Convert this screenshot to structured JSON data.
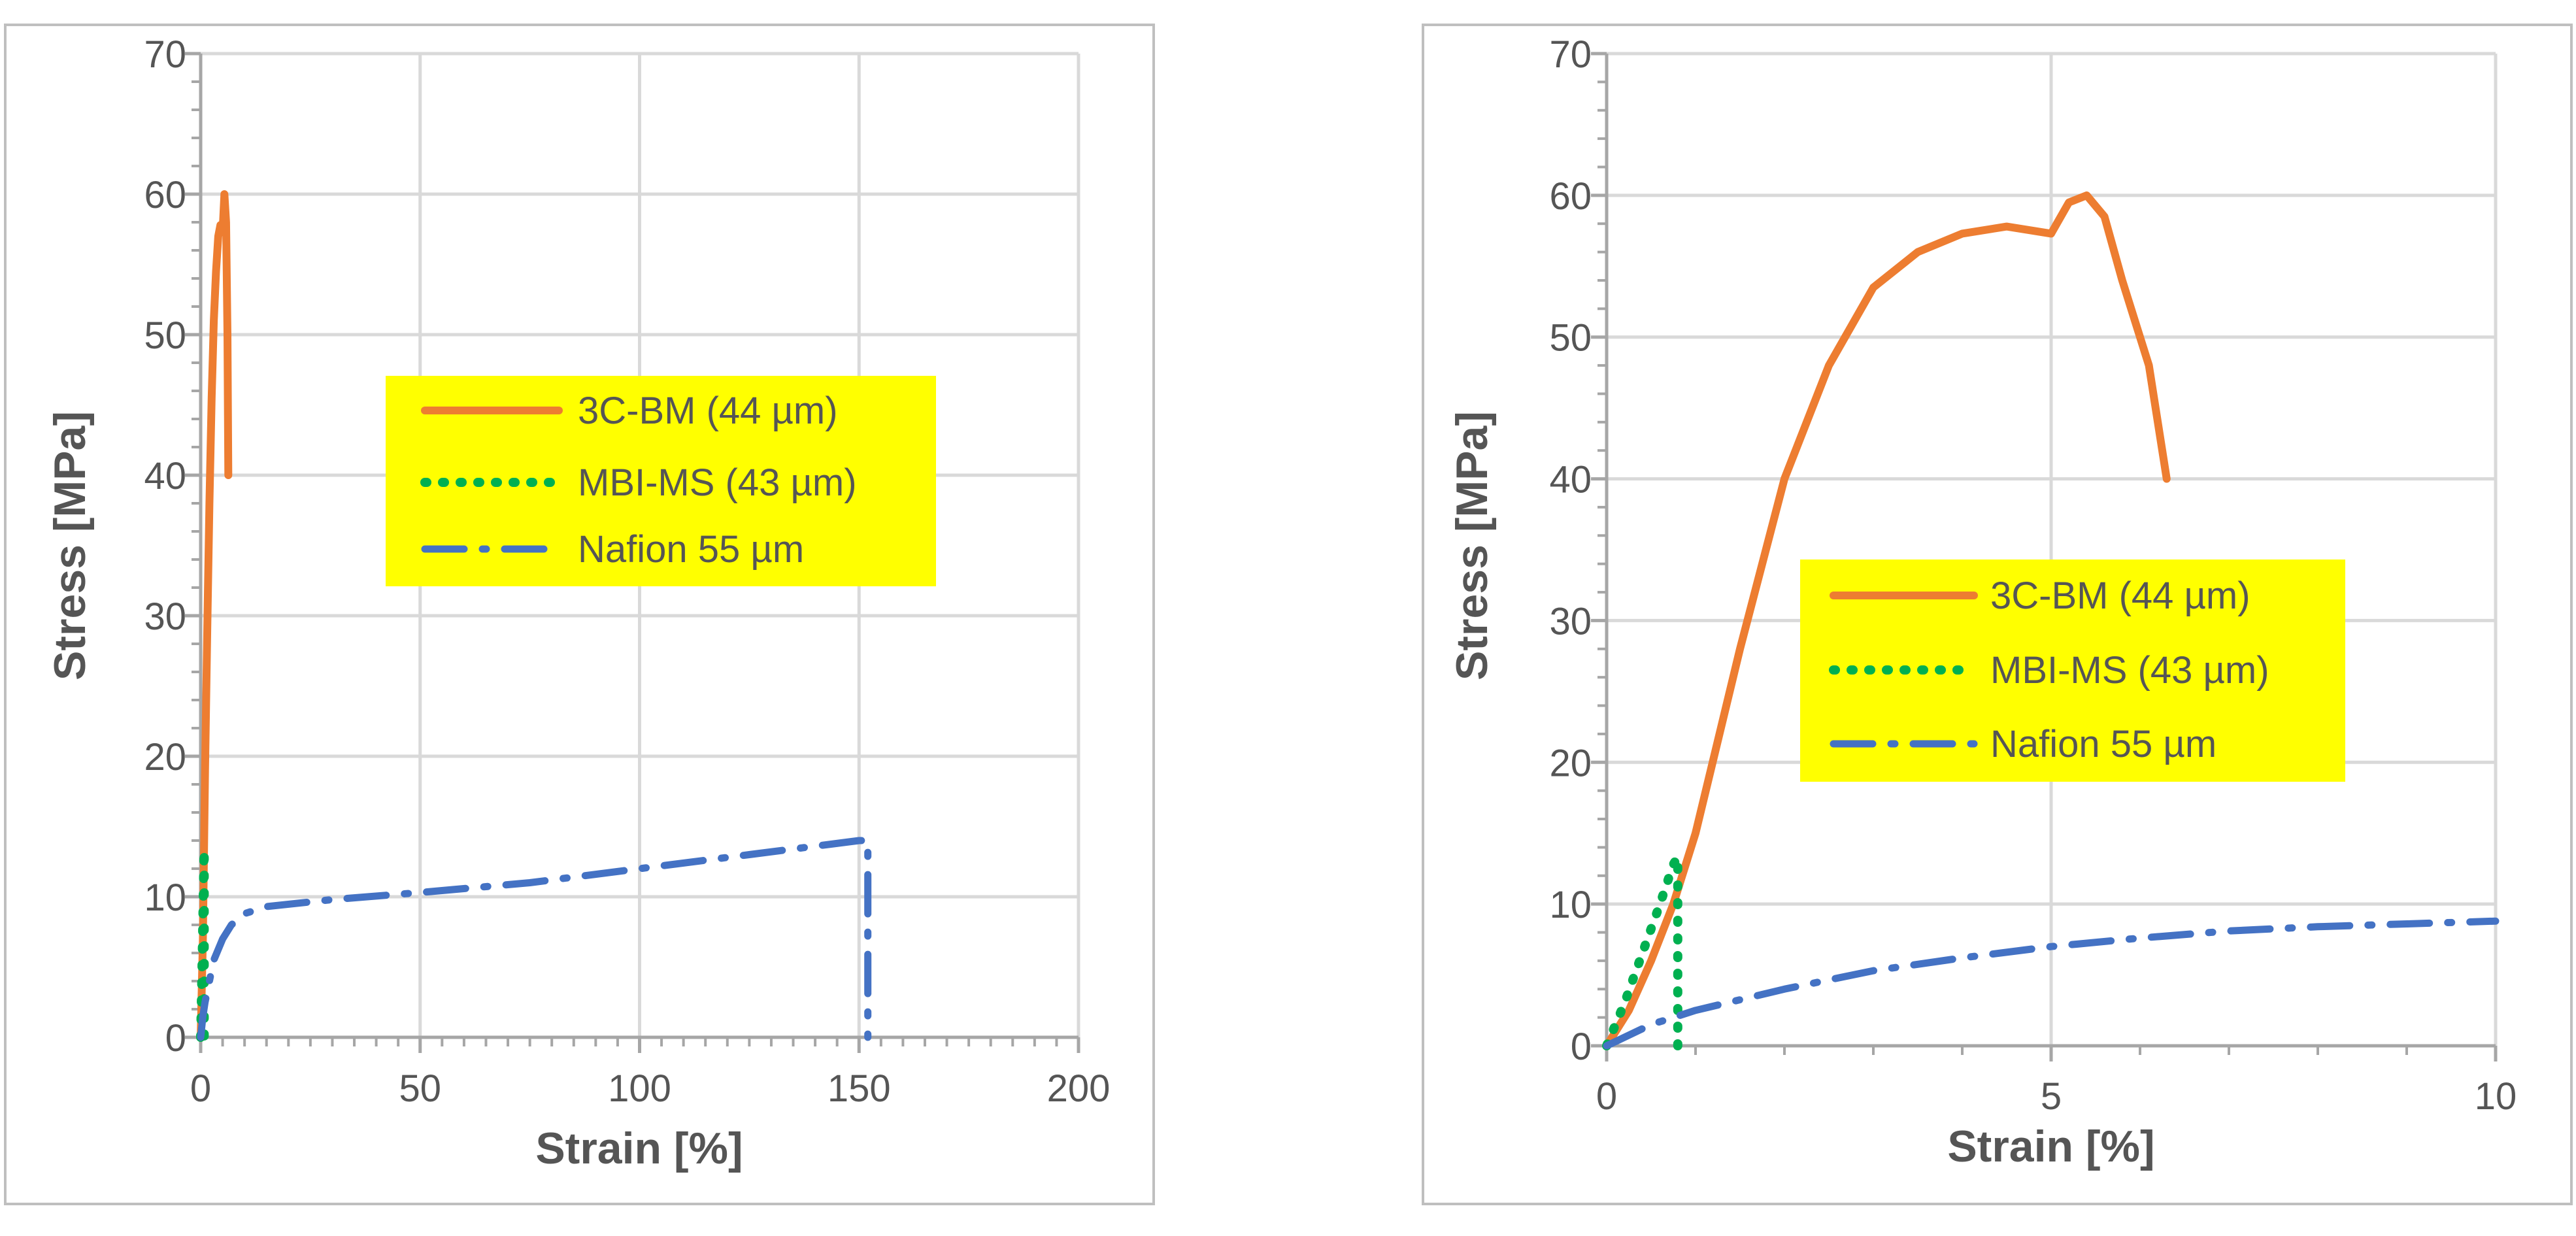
{
  "chart_data": [
    {
      "type": "line",
      "title": "",
      "xlabel": "Strain [%]",
      "ylabel": "Stress [MPa]",
      "xlim": [
        0,
        200
      ],
      "ylim": [
        0,
        70
      ],
      "x_ticks": [
        0,
        50,
        100,
        150,
        200
      ],
      "y_ticks": [
        0,
        10,
        20,
        30,
        40,
        50,
        60,
        70
      ],
      "x_tick_labels": [
        "0",
        "50",
        "100",
        "150",
        "200"
      ],
      "y_tick_labels": [
        "0",
        "10",
        "20",
        "30",
        "40",
        "50",
        "60",
        "70"
      ],
      "grid": true,
      "legend_position": "center-right",
      "series": [
        {
          "name": "3C-BM (44 µm)",
          "color": "#ED7D31",
          "style": "solid",
          "x": [
            0,
            0.5,
            1,
            1.5,
            2,
            2.5,
            3,
            3.5,
            4,
            4.5,
            5,
            5.4,
            5.8,
            6.1,
            6.3
          ],
          "y": [
            0,
            7,
            19,
            29,
            38,
            45.5,
            51,
            54.5,
            57,
            57.8,
            57.4,
            60,
            58,
            50,
            40
          ]
        },
        {
          "name": "MBI-MS (43 µm)",
          "color": "#00B050",
          "style": "dotted",
          "x": [
            0,
            0.2,
            0.4,
            0.6,
            0.75,
            0.8,
            0.8
          ],
          "y": [
            0,
            3,
            6.5,
            10,
            12.8,
            13.3,
            0
          ]
        },
        {
          "name": "Nafion 55 µm",
          "color": "#4472C4",
          "style": "dash-dot",
          "x": [
            0,
            0.5,
            1,
            2,
            3,
            5,
            7,
            10,
            15,
            30,
            50,
            75,
            100,
            125,
            150,
            152,
            152
          ],
          "y": [
            0,
            1.5,
            2.5,
            4,
            5.5,
            7,
            8,
            8.8,
            9.3,
            9.8,
            10.3,
            11,
            12,
            13,
            14,
            14,
            0
          ]
        }
      ]
    },
    {
      "type": "line",
      "title": "",
      "xlabel": "Strain [%]",
      "ylabel": "Stress [MPa]",
      "xlim": [
        0,
        10
      ],
      "ylim": [
        0,
        70
      ],
      "x_ticks": [
        0,
        5,
        10
      ],
      "y_ticks": [
        0,
        10,
        20,
        30,
        40,
        50,
        60,
        70
      ],
      "x_tick_labels": [
        "0",
        "5",
        "10"
      ],
      "y_tick_labels": [
        "0",
        "10",
        "20",
        "30",
        "40",
        "50",
        "60",
        "70"
      ],
      "grid": true,
      "legend_position": "center-right",
      "series": [
        {
          "name": "3C-BM (44 µm)",
          "color": "#ED7D31",
          "style": "solid",
          "x": [
            0,
            0.25,
            0.5,
            0.75,
            1,
            1.5,
            2,
            2.5,
            3,
            3.5,
            4,
            4.5,
            5,
            5.2,
            5.4,
            5.6,
            5.8,
            6.1,
            6.3
          ],
          "y": [
            0,
            2.5,
            6,
            10,
            15,
            28,
            40,
            48,
            53.5,
            56,
            57.3,
            57.8,
            57.3,
            59.5,
            60,
            58.5,
            54,
            48,
            40
          ]
        },
        {
          "name": "MBI-MS (43 µm)",
          "color": "#00B050",
          "style": "dotted",
          "x": [
            0,
            0.2,
            0.4,
            0.6,
            0.75,
            0.8,
            0.8
          ],
          "y": [
            0,
            3,
            6.5,
            10,
            12.8,
            13.3,
            0
          ]
        },
        {
          "name": "Nafion 55 µm",
          "color": "#4472C4",
          "style": "dash-dot",
          "x": [
            0,
            0.5,
            1,
            2,
            3,
            4,
            5,
            6,
            7,
            8,
            9,
            10
          ],
          "y": [
            0,
            1.5,
            2.5,
            4,
            5.3,
            6.2,
            7,
            7.6,
            8.1,
            8.4,
            8.6,
            8.8
          ]
        }
      ]
    }
  ]
}
